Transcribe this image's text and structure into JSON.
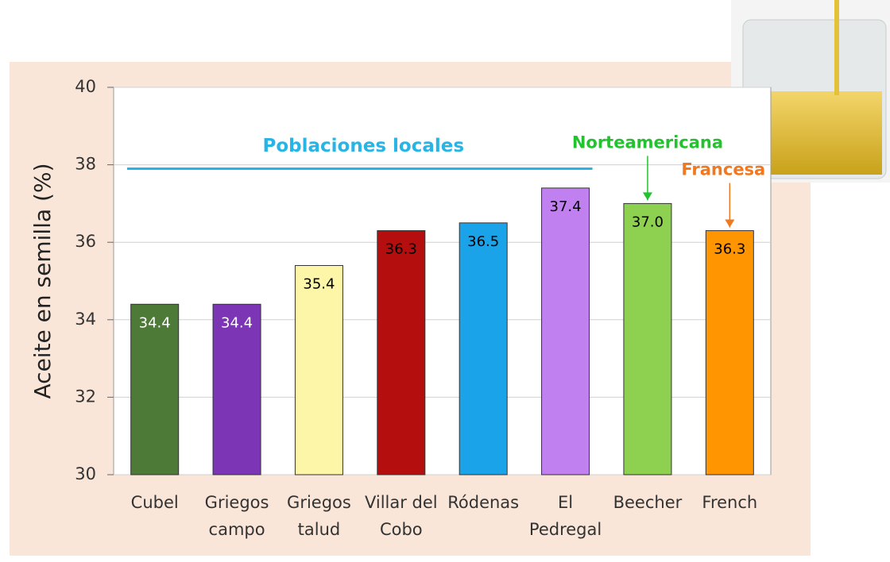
{
  "chart_data": {
    "type": "bar",
    "y_label": "Aceite en semilla (%)",
    "categories": [
      [
        "Cubel"
      ],
      [
        "Griegos",
        "campo"
      ],
      [
        "Griegos",
        "talud"
      ],
      [
        "Villar del",
        "Cobo"
      ],
      [
        "Ródenas"
      ],
      [
        "El",
        "Pedregal"
      ],
      [
        "Beecher"
      ],
      [
        "French"
      ]
    ],
    "values": [
      34.4,
      34.4,
      35.4,
      36.3,
      36.5,
      37.4,
      37.0,
      36.3
    ],
    "value_labels": [
      "34.4",
      "34.4",
      "35.4",
      "36.3",
      "36.5",
      "37.4",
      "37.0",
      "36.3"
    ],
    "colors": [
      "#4e7a38",
      "#7b35b5",
      "#fdf6a8",
      "#b50e0e",
      "#1aa3e8",
      "#c080f0",
      "#8ed050",
      "#ff9500"
    ],
    "label_colors": [
      "#ffffff",
      "#ffffff",
      "#000000",
      "#000000",
      "#000000",
      "#000000",
      "#000000",
      "#000000"
    ],
    "ylim": [
      30,
      40
    ],
    "yticks": [
      30,
      32,
      34,
      36,
      38,
      40
    ],
    "grid": true,
    "annotations": [
      {
        "text": "Poblaciones locales",
        "color": "#29b4e6",
        "y": 37.9
      },
      {
        "text": "Norteamericana",
        "color": "#22c32e",
        "target": 6
      },
      {
        "text": "Francesa",
        "color": "#f07820",
        "target": 7
      }
    ]
  }
}
